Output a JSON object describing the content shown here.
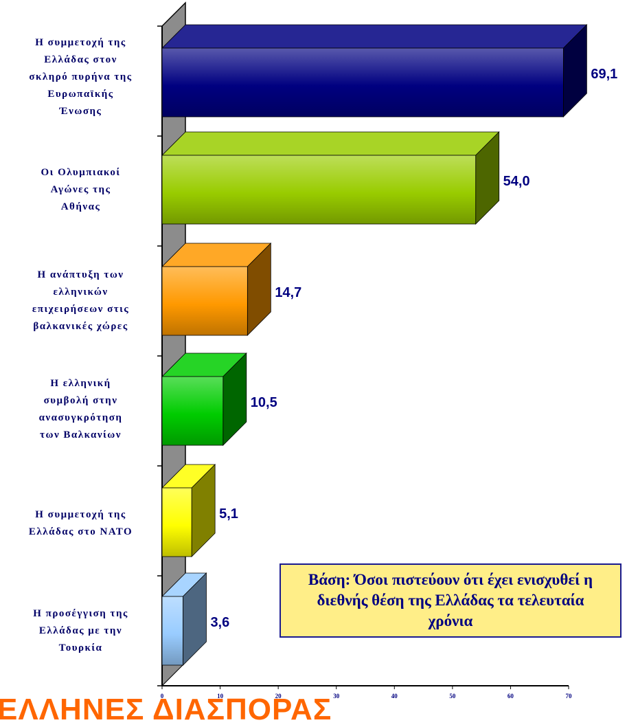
{
  "chart_data": {
    "type": "bar",
    "orientation": "horizontal",
    "style": "3d",
    "categories": [
      "Η συμμετοχή της Ελλάδας στον σκληρό πυρήνα της Ευρωπαϊκής Ένωσης",
      "Οι Ολυμπιακοί Αγώνες της Αθήνας",
      "Η ανάπτυξη των ελληνικών επιχειρήσεων στις βαλκανικές χώρες",
      "Η ελληνική συμβολή στην ανασυγκρότηση των Βαλκανίων",
      "Η συμμετοχή της Ελλάδας στο ΝΑΤΟ",
      "Η προσέγγιση της Ελλάδας με την Τουρκία"
    ],
    "values": [
      69.1,
      54.0,
      14.7,
      10.5,
      5.1,
      3.6
    ],
    "value_labels": [
      "69,1",
      "54,0",
      "14,7",
      "10,5",
      "5,1",
      "3,6"
    ],
    "bar_colors": [
      "#000080",
      "#99cc00",
      "#ff9900",
      "#00cc00",
      "#ffff00",
      "#99ccff"
    ],
    "xlim": [
      0,
      70
    ],
    "xticks": [
      "0",
      "10",
      "20",
      "30",
      "40",
      "50",
      "60",
      "70"
    ],
    "grid": false,
    "annotation": "Βάση: Όσοι πιστεύουν ότι έχει ενισχυθεί η διεθνής θέση της Ελλάδας τα τελευταία χρόνια"
  },
  "footer_title": "ΕΛΛΗΝΕΣ ΔΙΑΣΠΟΡΑΣ"
}
